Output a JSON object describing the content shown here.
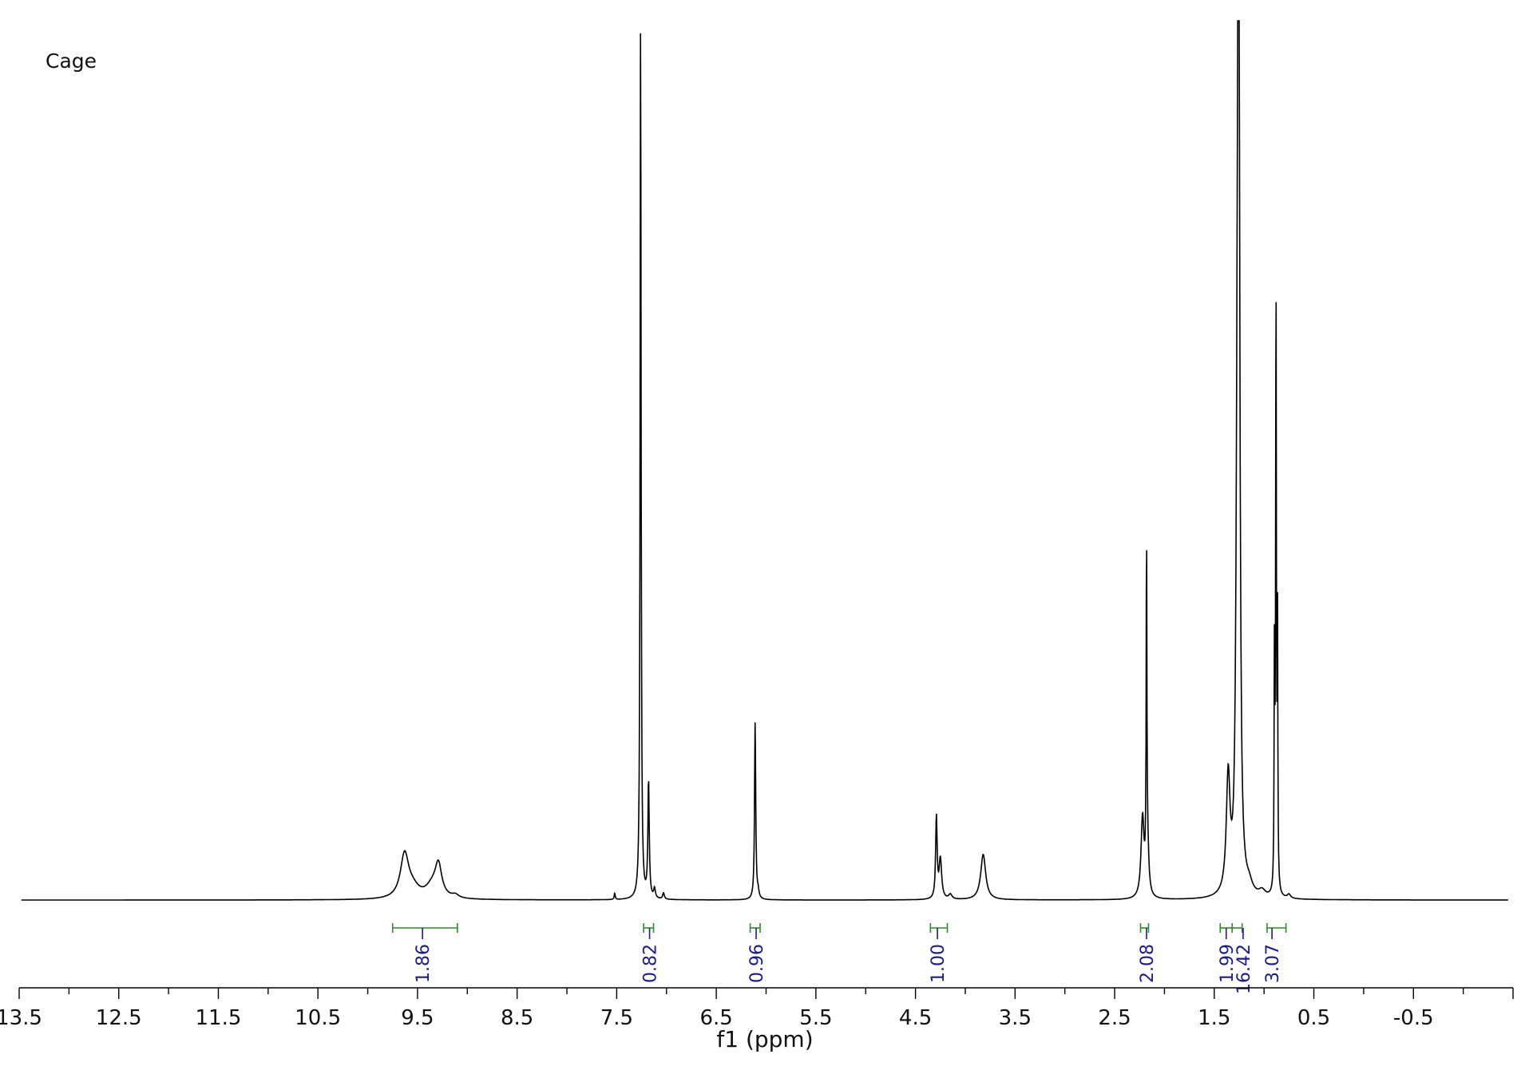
{
  "chart_data": {
    "type": "line",
    "title": "Cage",
    "xlabel": "f1 (ppm)",
    "ylabel": "",
    "xlim": [
      13.5,
      -1.5
    ],
    "x_reversed": true,
    "grid": false,
    "colors": {
      "spectrum": "#000000",
      "integral_bracket": "#2e8b2e",
      "integral_label": "#1a1a8c"
    },
    "x_ticks": [
      {
        "value": 13.5,
        "label": "13.5"
      },
      {
        "value": 12.5,
        "label": "12.5"
      },
      {
        "value": 11.5,
        "label": "11.5"
      },
      {
        "value": 10.5,
        "label": "10.5"
      },
      {
        "value": 9.5,
        "label": "9.5"
      },
      {
        "value": 8.5,
        "label": "8.5"
      },
      {
        "value": 7.5,
        "label": "7.5"
      },
      {
        "value": 6.5,
        "label": "6.5"
      },
      {
        "value": 5.5,
        "label": "5.5"
      },
      {
        "value": 4.5,
        "label": "4.5"
      },
      {
        "value": 3.5,
        "label": "3.5"
      },
      {
        "value": 2.5,
        "label": "2.5"
      },
      {
        "value": 1.5,
        "label": "1.5"
      },
      {
        "value": 0.5,
        "label": "0.5"
      },
      {
        "value": -0.5,
        "label": "-0.5"
      }
    ],
    "peaks": [
      {
        "ppm": 9.63,
        "height": 0.054,
        "width": 0.05
      },
      {
        "ppm": 9.55,
        "height": 0.012,
        "width": 0.08
      },
      {
        "ppm": 9.35,
        "height": 0.015,
        "width": 0.08
      },
      {
        "ppm": 9.29,
        "height": 0.038,
        "width": 0.04
      },
      {
        "ppm": 9.12,
        "height": 0.004,
        "width": 0.04
      },
      {
        "ppm": 7.26,
        "height": 1.1,
        "width": 0.006
      },
      {
        "ppm": 7.18,
        "height": 0.147,
        "width": 0.008
      },
      {
        "ppm": 7.12,
        "height": 0.012,
        "width": 0.01
      },
      {
        "ppm": 7.03,
        "height": 0.008,
        "width": 0.01
      },
      {
        "ppm": 7.52,
        "height": 0.008,
        "width": 0.006
      },
      {
        "ppm": 6.11,
        "height": 0.224,
        "width": 0.007
      },
      {
        "ppm": 6.08,
        "height": 0.008,
        "width": 0.01
      },
      {
        "ppm": 4.29,
        "height": 0.102,
        "width": 0.009
      },
      {
        "ppm": 4.25,
        "height": 0.05,
        "width": 0.015
      },
      {
        "ppm": 4.15,
        "height": 0.006,
        "width": 0.02
      },
      {
        "ppm": 3.82,
        "height": 0.057,
        "width": 0.03
      },
      {
        "ppm": 2.22,
        "height": 0.1,
        "width": 0.018
      },
      {
        "ppm": 2.18,
        "height": 0.425,
        "width": 0.004
      },
      {
        "ppm": 2.17,
        "height": 0.06,
        "width": 0.015
      },
      {
        "ppm": 1.36,
        "height": 0.145,
        "width": 0.022
      },
      {
        "ppm": 1.27,
        "height": 0.35,
        "width": 0.014
      },
      {
        "ppm": 1.255,
        "height": 1.3,
        "width": 0.012
      },
      {
        "ppm": 1.15,
        "height": 0.012,
        "width": 0.04
      },
      {
        "ppm": 1.02,
        "height": 0.008,
        "width": 0.04
      },
      {
        "ppm": 0.895,
        "height": 0.33,
        "width": 0.004
      },
      {
        "ppm": 0.88,
        "height": 0.79,
        "width": 0.004
      },
      {
        "ppm": 0.865,
        "height": 0.34,
        "width": 0.004
      },
      {
        "ppm": 0.75,
        "height": 0.005,
        "width": 0.02
      }
    ],
    "integrals": [
      {
        "from": 9.75,
        "to": 9.1,
        "label": "1.86",
        "label_at": 9.45
      },
      {
        "from": 7.23,
        "to": 7.13,
        "label": "0.82",
        "label_at": 7.17
      },
      {
        "from": 6.16,
        "to": 6.06,
        "label": "0.96",
        "label_at": 6.1
      },
      {
        "from": 4.35,
        "to": 4.18,
        "label": "1.00",
        "label_at": 4.28
      },
      {
        "from": 2.24,
        "to": 2.16,
        "label": "2.08",
        "label_at": 2.18
      },
      {
        "from": 1.44,
        "to": 1.32,
        "label": "1.99",
        "label_at": 1.38
      },
      {
        "from": 1.32,
        "to": 1.22,
        "label": "16.42",
        "label_at": 1.21
      },
      {
        "from": 0.97,
        "to": 0.78,
        "label": "3.07",
        "label_at": 0.92
      }
    ]
  }
}
